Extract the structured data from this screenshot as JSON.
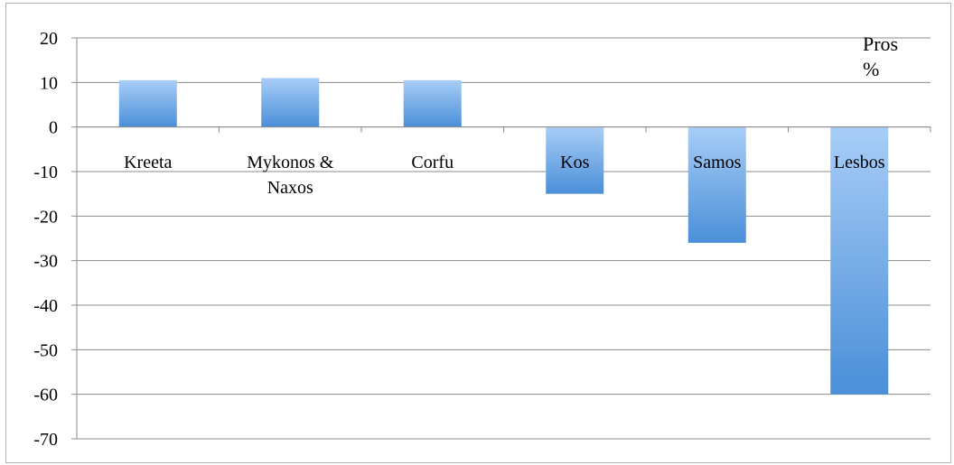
{
  "chart_data": {
    "type": "bar",
    "categories": [
      [
        "Kreeta"
      ],
      [
        "Mykonos &",
        "Naxos"
      ],
      [
        "Corfu"
      ],
      [
        "Kos"
      ],
      [
        "Samos"
      ],
      [
        "Lesbos"
      ]
    ],
    "series": [
      {
        "name": "Pros %",
        "legend_lines": [
          "Pros",
          "%"
        ],
        "values": [
          10.5,
          11,
          10.5,
          -15,
          -26,
          -60
        ]
      }
    ],
    "title": "",
    "xlabel": "",
    "ylabel": "",
    "ylim": [
      -70,
      20
    ],
    "yticks": [
      20,
      10,
      0,
      -10,
      -20,
      -30,
      -40,
      -50,
      -60,
      -70
    ],
    "grid": true,
    "legend_position": "top-right",
    "colors": {
      "bar_top": "#a8cdf7",
      "bar_bottom": "#4a8fd8",
      "grid": "#8c8c8c"
    }
  }
}
